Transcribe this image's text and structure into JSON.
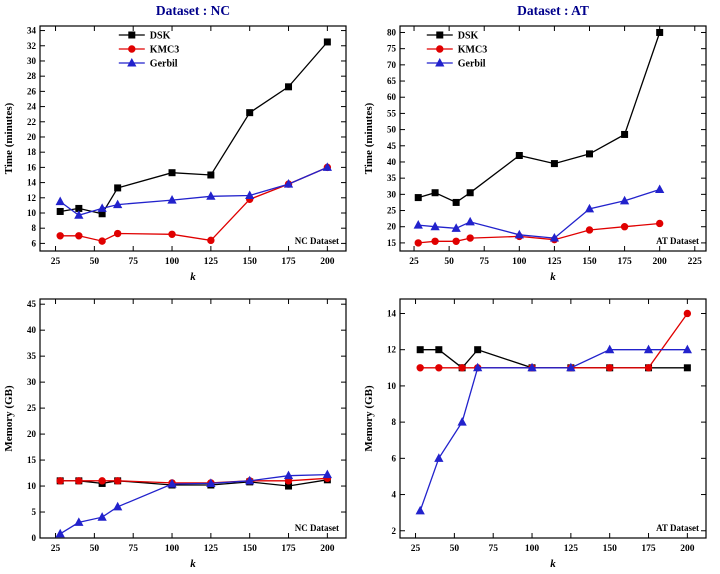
{
  "figure": {
    "background": "#ffffff"
  },
  "series_styles": [
    {
      "name": "DSK",
      "color": "#000000",
      "marker": "square"
    },
    {
      "name": "KMC3",
      "color": "#e00000",
      "marker": "circle"
    },
    {
      "name": "Gerbil",
      "color": "#2222cc",
      "marker": "triangle"
    }
  ],
  "chart_data": [
    {
      "type": "line",
      "title": "Dataset : NC",
      "title_color": "#00008B",
      "xlabel": "k",
      "ylabel": "Time (minutes)",
      "annotation": "NC Dataset",
      "x": [
        28,
        40,
        55,
        65,
        100,
        125,
        150,
        175,
        200
      ],
      "xlim": [
        15,
        212
      ],
      "xticks": [
        25,
        50,
        75,
        100,
        125,
        150,
        175,
        200
      ],
      "ylim": [
        5,
        34.6
      ],
      "yticks": [
        6,
        8,
        10,
        12,
        14,
        16,
        18,
        20,
        22,
        24,
        26,
        28,
        30,
        32,
        34
      ],
      "legend": true,
      "legend_x": 0.3,
      "series": [
        {
          "name": "DSK",
          "values": [
            10.2,
            10.6,
            9.9,
            13.3,
            15.3,
            15.0,
            23.2,
            26.6,
            32.5
          ]
        },
        {
          "name": "KMC3",
          "values": [
            7.0,
            7.0,
            6.3,
            7.3,
            7.2,
            6.4,
            11.8,
            13.8,
            16.0
          ]
        },
        {
          "name": "Gerbil",
          "values": [
            11.5,
            9.7,
            10.6,
            11.1,
            11.7,
            12.2,
            12.3,
            13.8,
            16.0
          ]
        }
      ]
    },
    {
      "type": "line",
      "title": "Dataset : AT",
      "title_color": "#00008B",
      "xlabel": "k",
      "ylabel": "Time (minutes)",
      "annotation": "AT Dataset",
      "x": [
        28,
        40,
        55,
        65,
        100,
        125,
        150,
        175,
        200
      ],
      "xlim": [
        15,
        233
      ],
      "xticks": [
        25,
        50,
        75,
        100,
        125,
        150,
        175,
        200,
        225
      ],
      "ylim": [
        12.5,
        82
      ],
      "yticks": [
        15,
        20,
        25,
        30,
        35,
        40,
        45,
        50,
        55,
        60,
        65,
        70,
        75,
        80
      ],
      "legend": true,
      "legend_x": 0.13,
      "series": [
        {
          "name": "DSK",
          "values": [
            29,
            30.5,
            27.5,
            30.5,
            42,
            39.5,
            42.5,
            48.5,
            80
          ]
        },
        {
          "name": "KMC3",
          "values": [
            15,
            15.5,
            15.5,
            16.5,
            17,
            16,
            19,
            20,
            21
          ]
        },
        {
          "name": "Gerbil",
          "values": [
            20.5,
            20,
            19.5,
            21.5,
            17.5,
            16.5,
            25.5,
            28,
            31.5
          ]
        }
      ]
    },
    {
      "type": "line",
      "title": "",
      "title_color": "#00008B",
      "xlabel": "k",
      "ylabel": "Memory (GB)",
      "annotation": "NC Dataset",
      "x": [
        28,
        40,
        55,
        65,
        100,
        125,
        150,
        175,
        200
      ],
      "xlim": [
        15,
        212
      ],
      "xticks": [
        25,
        50,
        75,
        100,
        125,
        150,
        175,
        200
      ],
      "ylim": [
        0,
        46
      ],
      "yticks": [
        0,
        5,
        10,
        15,
        20,
        25,
        30,
        35,
        40,
        45
      ],
      "legend": false,
      "legend_x": 0.3,
      "series": [
        {
          "name": "DSK",
          "values": [
            11,
            11,
            10.5,
            11,
            10.2,
            10.2,
            10.8,
            10,
            11.2
          ]
        },
        {
          "name": "KMC3",
          "values": [
            11,
            11,
            11,
            11,
            10.6,
            10.6,
            11,
            11,
            11.5
          ]
        },
        {
          "name": "Gerbil",
          "values": [
            0.8,
            3,
            4,
            6,
            10.4,
            10.5,
            11,
            12,
            12.2
          ]
        }
      ]
    },
    {
      "type": "line",
      "title": "",
      "title_color": "#00008B",
      "xlabel": "k",
      "ylabel": "Memory (GB)",
      "annotation": "AT Dataset",
      "x": [
        28,
        40,
        55,
        65,
        100,
        125,
        150,
        175,
        200
      ],
      "xlim": [
        15,
        212
      ],
      "xticks": [
        25,
        50,
        75,
        100,
        125,
        150,
        175,
        200
      ],
      "ylim": [
        1.6,
        14.8
      ],
      "yticks": [
        2,
        4,
        6,
        8,
        10,
        12,
        14
      ],
      "legend": false,
      "legend_x": 0.3,
      "series": [
        {
          "name": "DSK",
          "values": [
            12,
            12,
            11,
            12,
            11,
            11,
            11,
            11,
            11
          ]
        },
        {
          "name": "KMC3",
          "values": [
            11,
            11,
            11,
            11,
            11,
            11,
            11,
            11,
            14
          ]
        },
        {
          "name": "Gerbil",
          "values": [
            3.1,
            6,
            8,
            11,
            11,
            11,
            12,
            12,
            12
          ]
        }
      ]
    }
  ]
}
